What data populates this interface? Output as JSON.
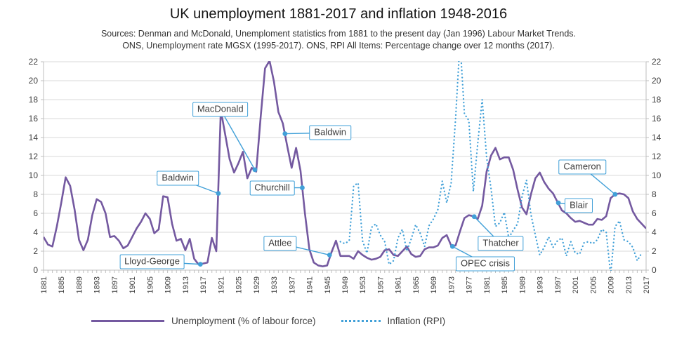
{
  "chart_data": {
    "type": "line",
    "title": "UK unemployment 1881-2017 and inflation 1948-2016",
    "sources": [
      "Sources: Denman and McDonald, Unemploment statistics from 1881 to the present day (Jan 1996) Labour Market Trends.",
      "ONS, Unemployment rate MGSX (1995-2017). ONS, RPI All Items: Percentage change over 12 months (2017)."
    ],
    "x_axis": {
      "min": 1881,
      "max": 2017,
      "tick_labels": [
        1881,
        1885,
        1889,
        1893,
        1897,
        1901,
        1905,
        1909,
        1913,
        1917,
        1921,
        1925,
        1929,
        1933,
        1937,
        1941,
        1945,
        1949,
        1953,
        1957,
        1961,
        1965,
        1969,
        1973,
        1977,
        1981,
        1985,
        1989,
        1993,
        1997,
        2001,
        2005,
        2009,
        2013,
        2017
      ]
    },
    "y_axis": {
      "min": 0,
      "max": 22,
      "step": 2,
      "ticks": [
        0,
        2,
        4,
        6,
        8,
        10,
        12,
        14,
        16,
        18,
        20,
        22
      ],
      "dual": true
    },
    "grid": "horizontal",
    "legend_position": "bottom",
    "series": [
      {
        "name": "Unemployment (% of labour force)",
        "color": "#7459a0",
        "line_style": "solid",
        "start_year": 1881,
        "values": [
          3.5,
          2.7,
          2.5,
          4.6,
          7.1,
          9.8,
          8.9,
          6.4,
          3.2,
          2.1,
          3.2,
          5.8,
          7.5,
          7.2,
          6.0,
          3.5,
          3.6,
          3.1,
          2.3,
          2.6,
          3.5,
          4.4,
          5.1,
          6.0,
          5.4,
          3.9,
          4.3,
          7.8,
          7.7,
          4.9,
          3.1,
          3.3,
          2.1,
          3.3,
          1.2,
          0.6,
          0.7,
          0.8,
          3.4,
          2.0,
          16.9,
          14.3,
          11.7,
          10.3,
          11.3,
          12.5,
          9.7,
          10.8,
          10.4,
          16.1,
          21.3,
          22.1,
          19.9,
          16.7,
          15.5,
          13.1,
          10.8,
          12.9,
          10.5,
          6.0,
          2.2,
          0.8,
          0.5,
          0.4,
          0.5,
          1.9,
          3.1,
          1.5,
          1.5,
          1.5,
          1.2,
          2.0,
          1.6,
          1.3,
          1.1,
          1.2,
          1.4,
          2.1,
          2.2,
          1.6,
          1.5,
          2.0,
          2.5,
          1.7,
          1.4,
          1.5,
          2.2,
          2.4,
          2.4,
          2.6,
          3.4,
          3.7,
          2.6,
          2.6,
          4.1,
          5.5,
          5.8,
          5.7,
          5.4,
          6.8,
          10.4,
          12.1,
          12.9,
          11.7,
          11.9,
          11.9,
          10.6,
          8.5,
          6.6,
          5.9,
          8.0,
          9.7,
          10.3,
          9.3,
          8.6,
          8.1,
          7.2,
          6.3,
          6.0,
          5.5,
          5.1,
          5.2,
          5.0,
          4.8,
          4.8,
          5.4,
          5.3,
          5.7,
          7.6,
          8.0,
          8.1,
          8.0,
          7.6,
          6.2,
          5.4,
          4.9,
          4.4
        ]
      },
      {
        "name": "Inflation (RPI)",
        "color": "#41a0d8",
        "line_style": "dotted",
        "start_year": 1948,
        "values": [
          3.0,
          2.8,
          3.1,
          8.9,
          9.2,
          3.1,
          1.8,
          4.5,
          4.9,
          3.7,
          3.0,
          0.6,
          1.0,
          3.4,
          4.3,
          2.0,
          3.3,
          4.8,
          3.9,
          2.5,
          4.7,
          5.4,
          6.4,
          9.4,
          7.1,
          9.2,
          16.0,
          24.2,
          16.5,
          15.8,
          8.3,
          13.4,
          18.0,
          11.9,
          8.6,
          4.6,
          5.0,
          6.1,
          3.4,
          4.2,
          4.9,
          7.8,
          9.5,
          5.9,
          3.7,
          1.6,
          2.4,
          3.5,
          2.4,
          3.1,
          3.4,
          1.5,
          3.0,
          1.8,
          1.7,
          2.9,
          3.0,
          2.8,
          3.2,
          4.3,
          4.0,
          -0.5,
          4.6,
          5.2,
          3.2,
          3.0,
          2.4,
          1.0,
          1.8
        ]
      }
    ],
    "annotations": [
      {
        "label": "MacDonald",
        "box_year": 1920.9,
        "box_value": 17.0,
        "target_year": 1928.7,
        "target_value": 10.6
      },
      {
        "label": "Baldwin",
        "box_year": 1911.3,
        "box_value": 9.7,
        "target_year": 1920.45,
        "target_value": 8.1
      },
      {
        "label": "Baldwin",
        "box_year": 1945.7,
        "box_value": 14.5,
        "target_year": 1935.5,
        "target_value": 14.4
      },
      {
        "label": "Churchill",
        "box_year": 1932.6,
        "box_value": 8.7,
        "target_year": 1939.4,
        "target_value": 8.7
      },
      {
        "label": "Lloyd-George",
        "box_year": 1905.5,
        "box_value": 0.9,
        "target_year": 1916.4,
        "target_value": 0.62
      },
      {
        "label": "Attlee",
        "box_year": 1934.4,
        "box_value": 2.84,
        "target_year": 1945.55,
        "target_value": 1.6
      },
      {
        "label": "OPEC crisis",
        "box_year": 1980.7,
        "box_value": 0.67,
        "target_year": 1973.3,
        "target_value": 2.5
      },
      {
        "label": "Thatcher",
        "box_year": 1984.2,
        "box_value": 2.78,
        "target_year": 1978.2,
        "target_value": 5.65
      },
      {
        "label": "Blair",
        "box_year": 2001.8,
        "box_value": 6.8,
        "target_year": 1997.2,
        "target_value": 7.1
      },
      {
        "label": "Cameron",
        "box_year": 2002.6,
        "box_value": 10.9,
        "target_year": 2010.0,
        "target_value": 8.0
      }
    ],
    "colors": {
      "unemployment_line": "#7459a0",
      "inflation_line": "#41a0d8",
      "gridline": "#d9d9d9",
      "axis": "#bfbfbf",
      "tick_text": "#3f3f3f",
      "annotation_border": "#41a0d8",
      "annotation_text": "#3b3b3b"
    }
  }
}
